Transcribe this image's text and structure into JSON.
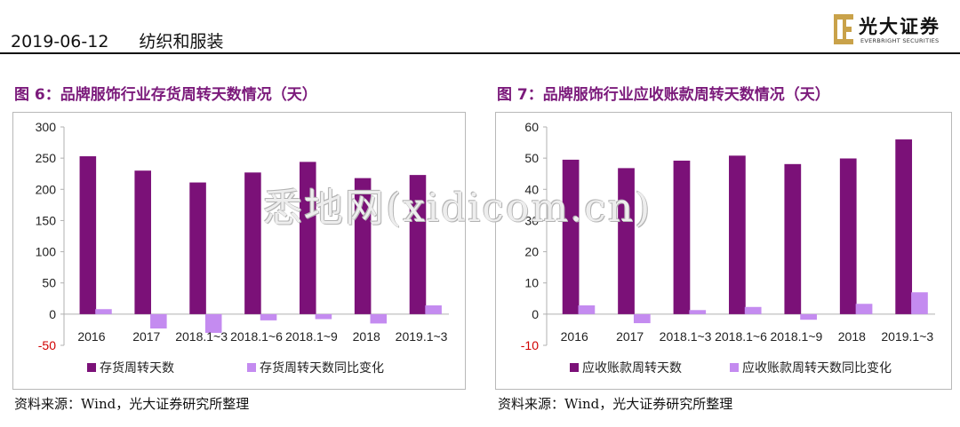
{
  "header": {
    "date": "2019-06-12",
    "category": "纺织和服装",
    "logo_cn": "光大证券",
    "logo_en": "EVERBRIGHT SECURITIES"
  },
  "colors": {
    "primary": "#7b1178",
    "secondary": "#c48bf0",
    "title": "#7b1a7b",
    "negative_tick": "#d00000"
  },
  "watermark": "悉地网(xidicom.cn)",
  "chart_data": [
    {
      "type": "bar",
      "title": "图 6：品牌服饰行业存货周转天数情况（天）",
      "categories": [
        "2016",
        "2017",
        "2018.1~3",
        "2018.1~6",
        "2018.1~9",
        "2018",
        "2019.1~3"
      ],
      "series": [
        {
          "name": "存货周转天数",
          "values": [
            253,
            230,
            211,
            227,
            244,
            218,
            223
          ]
        },
        {
          "name": "存货周转天数同比变化",
          "values": [
            8,
            -23,
            -30,
            -10,
            -8,
            -15,
            14
          ]
        }
      ],
      "ylim": [
        -50,
        300
      ],
      "yticks": [
        "300",
        "250",
        "200",
        "150",
        "100",
        "50",
        "0",
        "-50"
      ],
      "legend": "bottom",
      "grid": false,
      "source": "资料来源：Wind，光大证券研究所整理"
    },
    {
      "type": "bar",
      "title": "图 7：品牌服饰行业应收账款周转天数情况（天）",
      "categories": [
        "2016",
        "2017",
        "2018.1~3",
        "2018.1~6",
        "2018.1~9",
        "2018",
        "2019.1~3"
      ],
      "series": [
        {
          "name": "应收账款周转天数",
          "values": [
            49.5,
            46.8,
            49.2,
            50.8,
            48.1,
            49.9,
            56.0
          ]
        },
        {
          "name": "应收账款周转天数同比变化",
          "values": [
            2.8,
            -2.9,
            1.3,
            2.3,
            -1.8,
            3.3,
            7.0
          ]
        }
      ],
      "ylim": [
        -10,
        60
      ],
      "yticks": [
        "60",
        "50",
        "40",
        "30",
        "20",
        "10",
        "0",
        "-10"
      ],
      "legend": "bottom",
      "grid": false,
      "source": "资料来源：Wind，光大证券研究所整理"
    }
  ]
}
